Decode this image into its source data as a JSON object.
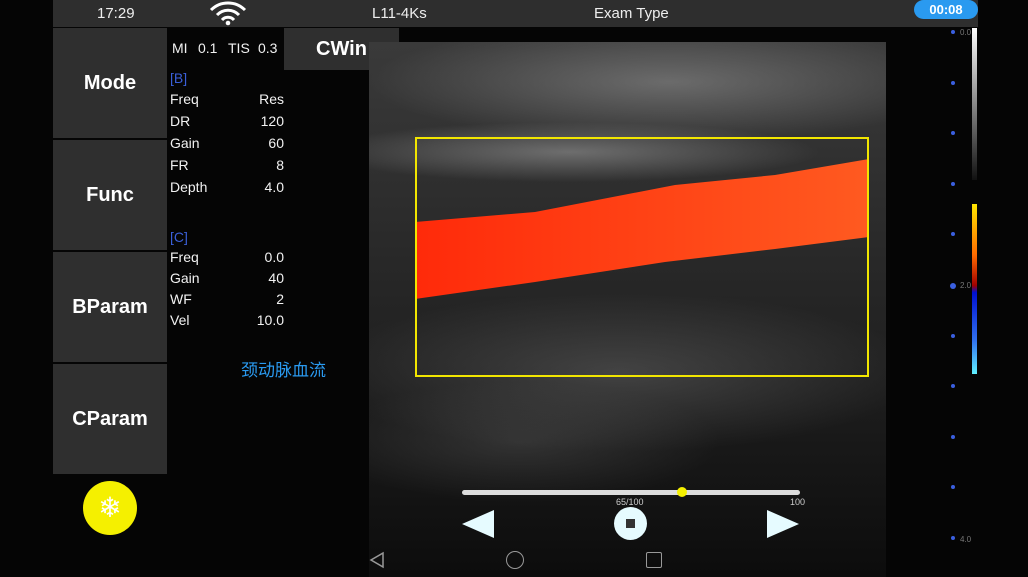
{
  "status": {
    "time": "17:29",
    "probe": "L11-4Ks",
    "exam_type": "Exam Type",
    "timer": "00:08",
    "wifi_icon": "wifi-icon"
  },
  "sidebar": {
    "items": [
      {
        "label": "Mode"
      },
      {
        "label": "Func"
      },
      {
        "label": "BParam"
      },
      {
        "label": "CParam"
      }
    ],
    "freeze_icon": "snowflake-icon"
  },
  "cwin_label": "CWin",
  "indices": {
    "mi_label": "MI",
    "mi": "0.1",
    "tis_label": "TIS",
    "tis": "0.3"
  },
  "b_params": {
    "header": "[B]",
    "rows": [
      {
        "k": "Freq",
        "v": "Res"
      },
      {
        "k": "DR",
        "v": "120"
      },
      {
        "k": "Gain",
        "v": "60"
      },
      {
        "k": "FR",
        "v": "8"
      },
      {
        "k": "Depth",
        "v": "4.0"
      }
    ]
  },
  "c_params": {
    "header": "[C]",
    "rows": [
      {
        "k": "Freq",
        "v": "0.0"
      },
      {
        "k": "Gain",
        "v": "40"
      },
      {
        "k": "WF",
        "v": "2"
      },
      {
        "k": "Vel",
        "v": "10.0"
      }
    ]
  },
  "annotation": "颈动脉血流",
  "cine": {
    "position": 65,
    "total": 100,
    "label": "65/100",
    "max_label": "100"
  },
  "depth_scale": {
    "top": "0.0",
    "mid": "2.0",
    "bottom": "4.0"
  },
  "colors": {
    "accent": "#2a9af0",
    "roi": "#f2e600",
    "flow": "#ff3010"
  }
}
